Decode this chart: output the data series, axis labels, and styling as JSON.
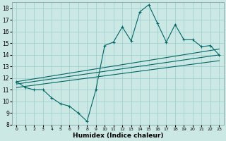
{
  "title": "",
  "xlabel": "Humidex (Indice chaleur)",
  "bg_color": "#cce8e4",
  "grid_color": "#99cccc",
  "line_color": "#006666",
  "xlim": [
    -0.5,
    23.5
  ],
  "ylim": [
    8,
    18.5
  ],
  "yticks": [
    8,
    9,
    10,
    11,
    12,
    13,
    14,
    15,
    16,
    17,
    18
  ],
  "xticks": [
    0,
    1,
    2,
    3,
    4,
    5,
    6,
    7,
    8,
    9,
    10,
    11,
    12,
    13,
    14,
    15,
    16,
    17,
    18,
    19,
    20,
    21,
    22,
    23
  ],
  "line1_x": [
    0,
    1,
    2,
    3,
    4,
    5,
    6,
    7,
    8,
    9,
    10,
    11,
    12,
    13,
    14,
    15,
    16,
    17,
    18,
    19,
    20,
    21,
    22,
    23
  ],
  "line1_y": [
    11.7,
    11.2,
    11.0,
    11.0,
    10.3,
    9.8,
    9.6,
    9.0,
    8.3,
    11.0,
    14.8,
    15.1,
    16.4,
    15.2,
    17.7,
    18.3,
    16.7,
    15.1,
    16.6,
    15.3,
    15.3,
    14.7,
    14.8,
    14.0
  ],
  "line2_x": [
    0,
    23
  ],
  "line2_y": [
    11.7,
    14.5
  ],
  "line3_x": [
    0,
    23
  ],
  "line3_y": [
    11.5,
    14.0
  ],
  "line4_x": [
    0,
    23
  ],
  "line4_y": [
    11.2,
    13.5
  ]
}
